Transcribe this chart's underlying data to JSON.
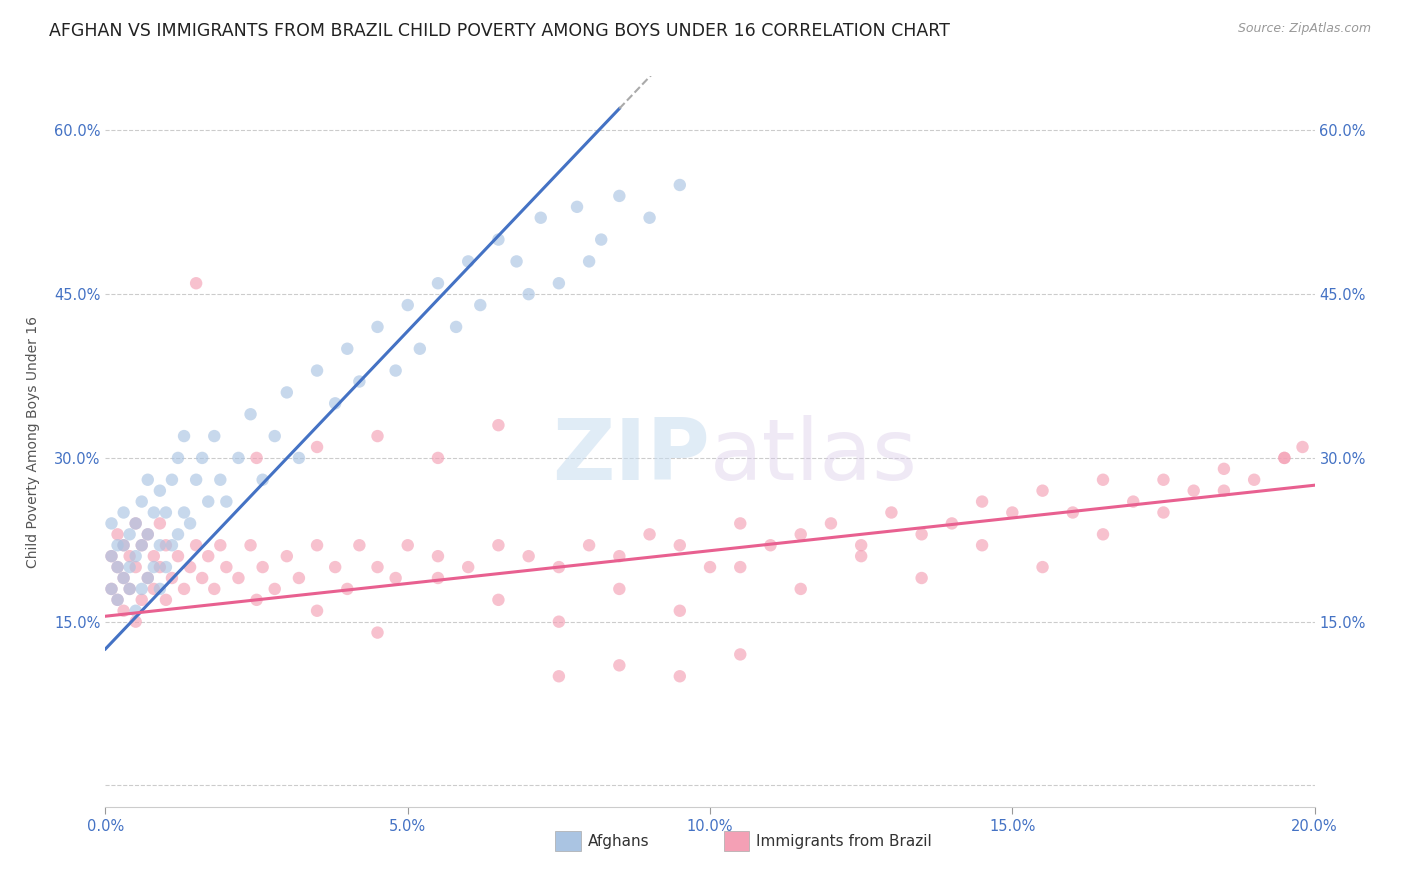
{
  "title": "AFGHAN VS IMMIGRANTS FROM BRAZIL CHILD POVERTY AMONG BOYS UNDER 16 CORRELATION CHART",
  "source": "Source: ZipAtlas.com",
  "ylabel": "Child Poverty Among Boys Under 16",
  "xlim": [
    0.0,
    0.2
  ],
  "ylim": [
    -0.02,
    0.65
  ],
  "watermark_zip": "ZIP",
  "watermark_atlas": "atlas",
  "color_afghan": "#aac4e2",
  "color_brazil": "#f4a0b5",
  "color_line_afghan": "#4472c4",
  "color_line_brazil": "#e86090",
  "background_color": "#ffffff",
  "title_fontsize": 12.5,
  "tick_fontsize": 10.5,
  "scatter_size": 80,
  "scatter_alpha": 0.65,
  "afghan_line_x0": 0.0,
  "afghan_line_y0": 0.125,
  "afghan_line_x1": 0.085,
  "afghan_line_y1": 0.62,
  "brazil_line_x0": 0.0,
  "brazil_line_y0": 0.155,
  "brazil_line_x1": 0.2,
  "brazil_line_y1": 0.275,
  "afghan_x": [
    0.001,
    0.001,
    0.001,
    0.002,
    0.002,
    0.002,
    0.003,
    0.003,
    0.003,
    0.004,
    0.004,
    0.004,
    0.005,
    0.005,
    0.005,
    0.006,
    0.006,
    0.006,
    0.007,
    0.007,
    0.007,
    0.008,
    0.008,
    0.009,
    0.009,
    0.009,
    0.01,
    0.01,
    0.011,
    0.011,
    0.012,
    0.012,
    0.013,
    0.013,
    0.014,
    0.015,
    0.016,
    0.017,
    0.018,
    0.019,
    0.02,
    0.022,
    0.024,
    0.026,
    0.028,
    0.03,
    0.032,
    0.035,
    0.038,
    0.04,
    0.042,
    0.045,
    0.048,
    0.05,
    0.052,
    0.055,
    0.058,
    0.06,
    0.062,
    0.065,
    0.068,
    0.07,
    0.072,
    0.075,
    0.078,
    0.08,
    0.082,
    0.085,
    0.09,
    0.095
  ],
  "afghan_y": [
    0.18,
    0.21,
    0.24,
    0.17,
    0.2,
    0.22,
    0.19,
    0.22,
    0.25,
    0.18,
    0.2,
    0.23,
    0.16,
    0.21,
    0.24,
    0.18,
    0.22,
    0.26,
    0.19,
    0.23,
    0.28,
    0.2,
    0.25,
    0.18,
    0.22,
    0.27,
    0.2,
    0.25,
    0.22,
    0.28,
    0.23,
    0.3,
    0.25,
    0.32,
    0.24,
    0.28,
    0.3,
    0.26,
    0.32,
    0.28,
    0.26,
    0.3,
    0.34,
    0.28,
    0.32,
    0.36,
    0.3,
    0.38,
    0.35,
    0.4,
    0.37,
    0.42,
    0.38,
    0.44,
    0.4,
    0.46,
    0.42,
    0.48,
    0.44,
    0.5,
    0.48,
    0.45,
    0.52,
    0.46,
    0.53,
    0.48,
    0.5,
    0.54,
    0.52,
    0.55
  ],
  "brazil_x": [
    0.001,
    0.001,
    0.002,
    0.002,
    0.002,
    0.003,
    0.003,
    0.003,
    0.004,
    0.004,
    0.005,
    0.005,
    0.005,
    0.006,
    0.006,
    0.007,
    0.007,
    0.008,
    0.008,
    0.009,
    0.009,
    0.01,
    0.01,
    0.011,
    0.012,
    0.013,
    0.014,
    0.015,
    0.016,
    0.017,
    0.018,
    0.019,
    0.02,
    0.022,
    0.024,
    0.026,
    0.028,
    0.03,
    0.032,
    0.035,
    0.038,
    0.04,
    0.042,
    0.045,
    0.048,
    0.05,
    0.055,
    0.06,
    0.065,
    0.07,
    0.075,
    0.08,
    0.085,
    0.09,
    0.095,
    0.1,
    0.105,
    0.11,
    0.115,
    0.12,
    0.125,
    0.13,
    0.135,
    0.14,
    0.145,
    0.15,
    0.155,
    0.16,
    0.165,
    0.17,
    0.175,
    0.18,
    0.185,
    0.19,
    0.195,
    0.198,
    0.025,
    0.035,
    0.045,
    0.055,
    0.065,
    0.075,
    0.085,
    0.095,
    0.105,
    0.115,
    0.125,
    0.135,
    0.145,
    0.155,
    0.165,
    0.175,
    0.185,
    0.195,
    0.015,
    0.025,
    0.035,
    0.045,
    0.055,
    0.065,
    0.075,
    0.085,
    0.095,
    0.105
  ],
  "brazil_y": [
    0.18,
    0.21,
    0.17,
    0.2,
    0.23,
    0.16,
    0.19,
    0.22,
    0.18,
    0.21,
    0.15,
    0.2,
    0.24,
    0.17,
    0.22,
    0.19,
    0.23,
    0.18,
    0.21,
    0.2,
    0.24,
    0.17,
    0.22,
    0.19,
    0.21,
    0.18,
    0.2,
    0.22,
    0.19,
    0.21,
    0.18,
    0.22,
    0.2,
    0.19,
    0.22,
    0.2,
    0.18,
    0.21,
    0.19,
    0.22,
    0.2,
    0.18,
    0.22,
    0.2,
    0.19,
    0.22,
    0.21,
    0.2,
    0.22,
    0.21,
    0.2,
    0.22,
    0.21,
    0.23,
    0.22,
    0.2,
    0.24,
    0.22,
    0.23,
    0.24,
    0.22,
    0.25,
    0.23,
    0.24,
    0.26,
    0.25,
    0.27,
    0.25,
    0.28,
    0.26,
    0.28,
    0.27,
    0.29,
    0.28,
    0.3,
    0.31,
    0.17,
    0.16,
    0.14,
    0.19,
    0.17,
    0.15,
    0.18,
    0.16,
    0.2,
    0.18,
    0.21,
    0.19,
    0.22,
    0.2,
    0.23,
    0.25,
    0.27,
    0.3,
    0.46,
    0.3,
    0.31,
    0.32,
    0.3,
    0.33,
    0.1,
    0.11,
    0.1,
    0.12
  ]
}
